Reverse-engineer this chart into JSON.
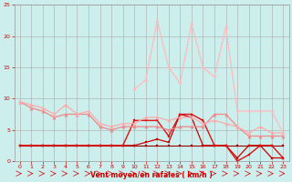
{
  "background_color": "#cceeed",
  "grid_color": "#aaaaaa",
  "xlabel": "Vent moyen/en rafales ( km/h )",
  "xlabel_color": "#cc0000",
  "tick_color": "#cc0000",
  "xlim": [
    -0.5,
    23.5
  ],
  "ylim": [
    0,
    25
  ],
  "yticks": [
    0,
    5,
    10,
    15,
    20,
    25
  ],
  "xticks": [
    0,
    1,
    2,
    3,
    4,
    5,
    6,
    7,
    8,
    9,
    10,
    11,
    12,
    13,
    14,
    15,
    16,
    17,
    18,
    19,
    20,
    21,
    22,
    23
  ],
  "series": [
    {
      "x": [
        0,
        1,
        2,
        3,
        4,
        5,
        6,
        7,
        8,
        9,
        10,
        11,
        12,
        13,
        14,
        15,
        16,
        17,
        18,
        19,
        20,
        21,
        22,
        23
      ],
      "y": [
        2.5,
        2.5,
        2.5,
        2.5,
        2.5,
        2.5,
        2.5,
        2.5,
        2.5,
        2.5,
        2.5,
        2.5,
        2.5,
        2.5,
        2.5,
        2.5,
        2.5,
        2.5,
        2.5,
        2.5,
        2.5,
        2.5,
        2.5,
        2.5
      ],
      "color": "#990000",
      "lw": 0.8,
      "marker": "s",
      "ms": 1.8
    },
    {
      "x": [
        0,
        1,
        2,
        3,
        4,
        5,
        6,
        7,
        8,
        9,
        10,
        11,
        12,
        13,
        14,
        15,
        16,
        17,
        18,
        19,
        20,
        21,
        22,
        23
      ],
      "y": [
        2.5,
        2.5,
        2.5,
        2.5,
        2.5,
        2.5,
        2.5,
        2.5,
        2.5,
        2.5,
        2.5,
        3.0,
        3.5,
        3.0,
        7.5,
        7.0,
        2.5,
        2.5,
        2.5,
        0.5,
        2.5,
        2.5,
        0.5,
        0.5
      ],
      "color": "#cc0000",
      "lw": 0.9,
      "marker": "s",
      "ms": 1.8
    },
    {
      "x": [
        0,
        1,
        2,
        3,
        4,
        5,
        6,
        7,
        8,
        9,
        10,
        11,
        12,
        13,
        14,
        15,
        16,
        17,
        18,
        19,
        20,
        21,
        22,
        23
      ],
      "y": [
        2.5,
        2.5,
        2.5,
        2.5,
        2.5,
        2.5,
        2.5,
        2.5,
        2.5,
        2.5,
        6.5,
        6.5,
        6.5,
        4.0,
        7.5,
        7.5,
        6.5,
        2.5,
        2.5,
        0.0,
        1.0,
        2.5,
        2.5,
        0.5
      ],
      "color": "#dd1111",
      "lw": 1.0,
      "marker": "s",
      "ms": 2.0
    },
    {
      "x": [
        0,
        1,
        2,
        3,
        4,
        5,
        6,
        7,
        8,
        9,
        10,
        11,
        12,
        13,
        14,
        15,
        16,
        17,
        18,
        19,
        20,
        21,
        22,
        23
      ],
      "y": [
        9.5,
        8.5,
        8.0,
        7.0,
        7.5,
        7.5,
        7.5,
        5.5,
        5.0,
        5.5,
        5.5,
        5.5,
        5.5,
        5.0,
        5.5,
        5.5,
        5.5,
        7.5,
        7.5,
        5.5,
        4.0,
        4.0,
        4.0,
        4.0
      ],
      "color": "#ee8888",
      "lw": 0.9,
      "marker": "^",
      "ms": 2.5
    },
    {
      "x": [
        0,
        1,
        2,
        3,
        4,
        5,
        6,
        7,
        8,
        9,
        10,
        11,
        12,
        13,
        14,
        15,
        16,
        17,
        18,
        19,
        20,
        21,
        22,
        23
      ],
      "y": [
        9.5,
        9.0,
        8.5,
        7.5,
        9.0,
        7.5,
        8.0,
        6.0,
        5.5,
        6.0,
        6.0,
        7.0,
        7.0,
        6.5,
        7.0,
        7.0,
        6.0,
        6.5,
        6.0,
        5.5,
        4.5,
        5.5,
        4.5,
        4.5
      ],
      "color": "#ffaaaa",
      "lw": 0.9,
      "marker": "^",
      "ms": 2.5
    },
    {
      "x": [
        10,
        11,
        12,
        13,
        14,
        15,
        16,
        17,
        18,
        19,
        20,
        21,
        22,
        23
      ],
      "y": [
        11.5,
        13.0,
        22.5,
        15.0,
        12.5,
        22.0,
        15.0,
        13.5,
        21.5,
        8.0,
        8.0,
        8.0,
        8.0,
        4.5
      ],
      "color": "#ffbbbb",
      "lw": 0.9,
      "marker": "D",
      "ms": 1.8
    }
  ]
}
